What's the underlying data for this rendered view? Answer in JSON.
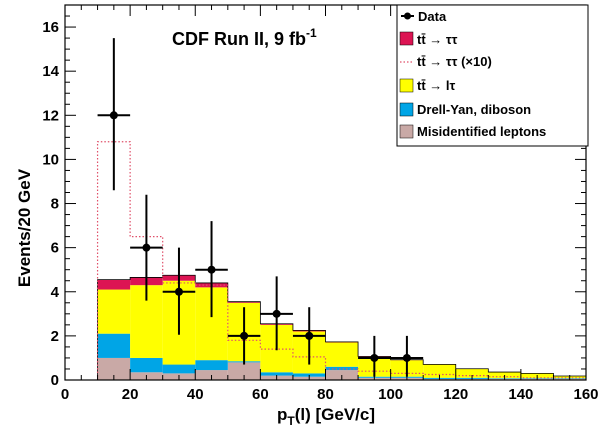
{
  "chart_data": {
    "type": "bar",
    "title": "CDF Run II, 9 fb",
    "title_superscript": "-1",
    "xlabel": "p",
    "xlabel_sub": "T",
    "xlabel_rest": "(l)  [GeV/c]",
    "ylabel": "Events/20 GeV",
    "xlim": [
      0,
      160
    ],
    "ylim": [
      0,
      17
    ],
    "x_ticks": [
      "0",
      "20",
      "40",
      "60",
      "80",
      "100",
      "120",
      "140",
      "160"
    ],
    "y_ticks": [
      "0",
      "2",
      "4",
      "6",
      "8",
      "10",
      "12",
      "14",
      "16"
    ],
    "grid": false,
    "legend_position": "top-right",
    "bin_edges": [
      10,
      20,
      30,
      40,
      50,
      60,
      70,
      80,
      90,
      100,
      110,
      120,
      130,
      140,
      150,
      160
    ],
    "stack": [
      {
        "name": "Misidentified leptons",
        "color": "#c9a9a6",
        "values": [
          1.0,
          0.35,
          0.3,
          0.45,
          0.8,
          0.2,
          0.15,
          0.45,
          0.1,
          0.1,
          0.05,
          0.05,
          0.05,
          0.05,
          0.05
        ]
      },
      {
        "name": "Drell-Yan, diboson",
        "color": "#00a5e6",
        "values": [
          1.1,
          0.65,
          0.4,
          0.45,
          0.05,
          0.15,
          0.15,
          0.15,
          0.05,
          0.05,
          0.05,
          0.05,
          0.03,
          0.03,
          0.03
        ]
      },
      {
        "name": "lτ",
        "color": "#ffff00",
        "values": [
          2.0,
          3.3,
          3.8,
          3.3,
          2.65,
          2.15,
          1.9,
          1.1,
          0.9,
          0.75,
          0.6,
          0.4,
          0.27,
          0.22,
          0.1
        ]
      },
      {
        "name": "ττ",
        "color": "#dc1453",
        "values": [
          0.45,
          0.35,
          0.25,
          0.2,
          0.05,
          0.05,
          0.05,
          0.03,
          0.02,
          0.02,
          0.01,
          0.01,
          0.01,
          0.0,
          0.0
        ]
      }
    ],
    "scaled_signal": {
      "name": "ττ (×10)",
      "color": "#e0506a",
      "values": [
        10.8,
        6.5,
        4.4,
        4.3,
        1.8,
        1.4,
        1.05,
        0.5,
        0.4,
        0.3,
        0.25,
        0.2,
        0.15,
        0.1,
        0.1
      ]
    },
    "data_points": {
      "name": "Data",
      "x": [
        15,
        25,
        35,
        45,
        55,
        65,
        75,
        95,
        105
      ],
      "y": [
        12,
        6,
        4,
        5,
        2,
        3,
        2,
        1,
        1
      ],
      "yerr_low": [
        3.4,
        2.4,
        1.95,
        2.15,
        1.3,
        1.65,
        1.3,
        0.85,
        0.85
      ],
      "yerr_high": [
        3.5,
        2.4,
        2.0,
        2.2,
        1.3,
        1.7,
        1.3,
        1.0,
        1.0
      ]
    }
  },
  "legend": {
    "data": "Data",
    "tt_tautau_label": "tt̄ → ττ",
    "tt_tautau_x10_label": "tt̄ → ττ (×10)",
    "tt_ltau_label": "tt̄ → lτ",
    "dy_label": "Drell-Yan, diboson",
    "misid_label": "Misidentified leptons"
  }
}
